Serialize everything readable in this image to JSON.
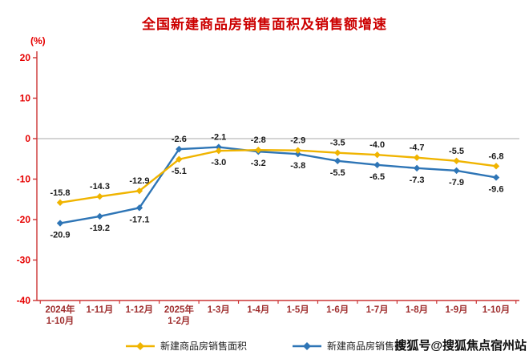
{
  "page": {
    "watermark": "搜狐号@搜狐焦点宿州站"
  },
  "chart_data": {
    "type": "line",
    "title": "全国新建商品房销售面积及销售额增速",
    "ylabel": "(%)",
    "categories": [
      "2024年\n1-10月",
      "1-11月",
      "1-12月",
      "2025年\n1-2月",
      "1-3月",
      "1-4月",
      "1-5月",
      "1-6月",
      "1-7月",
      "1-8月",
      "1-9月",
      "1-10月"
    ],
    "series": [
      {
        "name": "新建商品房销售面积",
        "color": "#f0b400",
        "marker": "diamond",
        "values": [
          -15.8,
          -14.3,
          -12.9,
          -5.1,
          -3.0,
          -2.8,
          -2.9,
          -3.5,
          -4.0,
          -4.7,
          -5.5,
          -6.8
        ]
      },
      {
        "name": "新建商品房销售额",
        "color": "#2e75b6",
        "marker": "diamond",
        "values": [
          -20.9,
          -19.2,
          -17.1,
          -2.6,
          -2.1,
          -3.2,
          -3.8,
          -5.5,
          -6.5,
          -7.3,
          -7.9,
          -9.6
        ]
      }
    ],
    "ylim": [
      -40,
      20
    ],
    "yticks": [
      20,
      10,
      0,
      -10,
      -20,
      -30,
      -40
    ],
    "label_decimals": 1,
    "legend_position": "bottom",
    "grid": false,
    "colors": {
      "title": "#cc0000",
      "axis": "#cc3333",
      "y_tick_text": "#e60000",
      "x_tick_text": "#a03030",
      "zero_line": "#aaaaaa",
      "data_label": "#1a1a1a"
    }
  }
}
